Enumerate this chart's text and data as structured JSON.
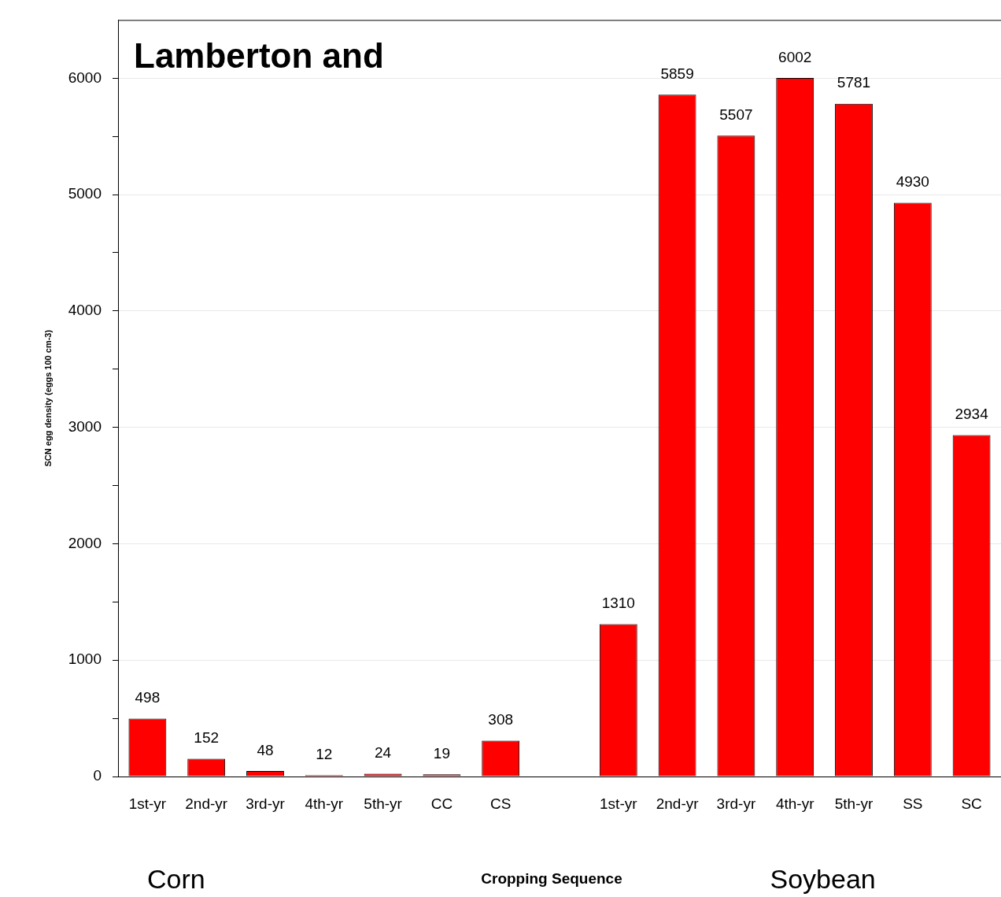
{
  "chart_data": {
    "type": "bar",
    "title": "Lamberton and",
    "xlabel": "Cropping Sequence",
    "ylabel": "SCN egg density (eggs 100 cm-3)",
    "categories": [
      "1st-yr",
      "2nd-yr",
      "3rd-yr",
      "4th-yr",
      "5th-yr",
      "CC",
      "CS",
      null,
      "1st-yr",
      "2nd-yr",
      "3rd-yr",
      "4th-yr",
      "5th-yr",
      "SS",
      "SC"
    ],
    "values": [
      498,
      152,
      48,
      12,
      24,
      19,
      308,
      null,
      1310,
      5859,
      5507,
      6002,
      5781,
      4930,
      2934
    ],
    "color": "#ff0000",
    "data_labels": true,
    "ylim": [
      0,
      6500
    ],
    "yticks": [
      0,
      {
        "value": 500,
        "label": null
      },
      1000,
      {
        "value": 1500,
        "label": null
      },
      2000,
      {
        "value": 2500,
        "label": null
      },
      3000,
      {
        "value": 3500,
        "label": null
      },
      4000,
      {
        "value": 4500,
        "label": null
      },
      5000,
      {
        "value": 5500,
        "label": null
      },
      6000
    ],
    "grid": "y",
    "legend": false,
    "annotations": [
      "Corn",
      "Soybean"
    ]
  }
}
